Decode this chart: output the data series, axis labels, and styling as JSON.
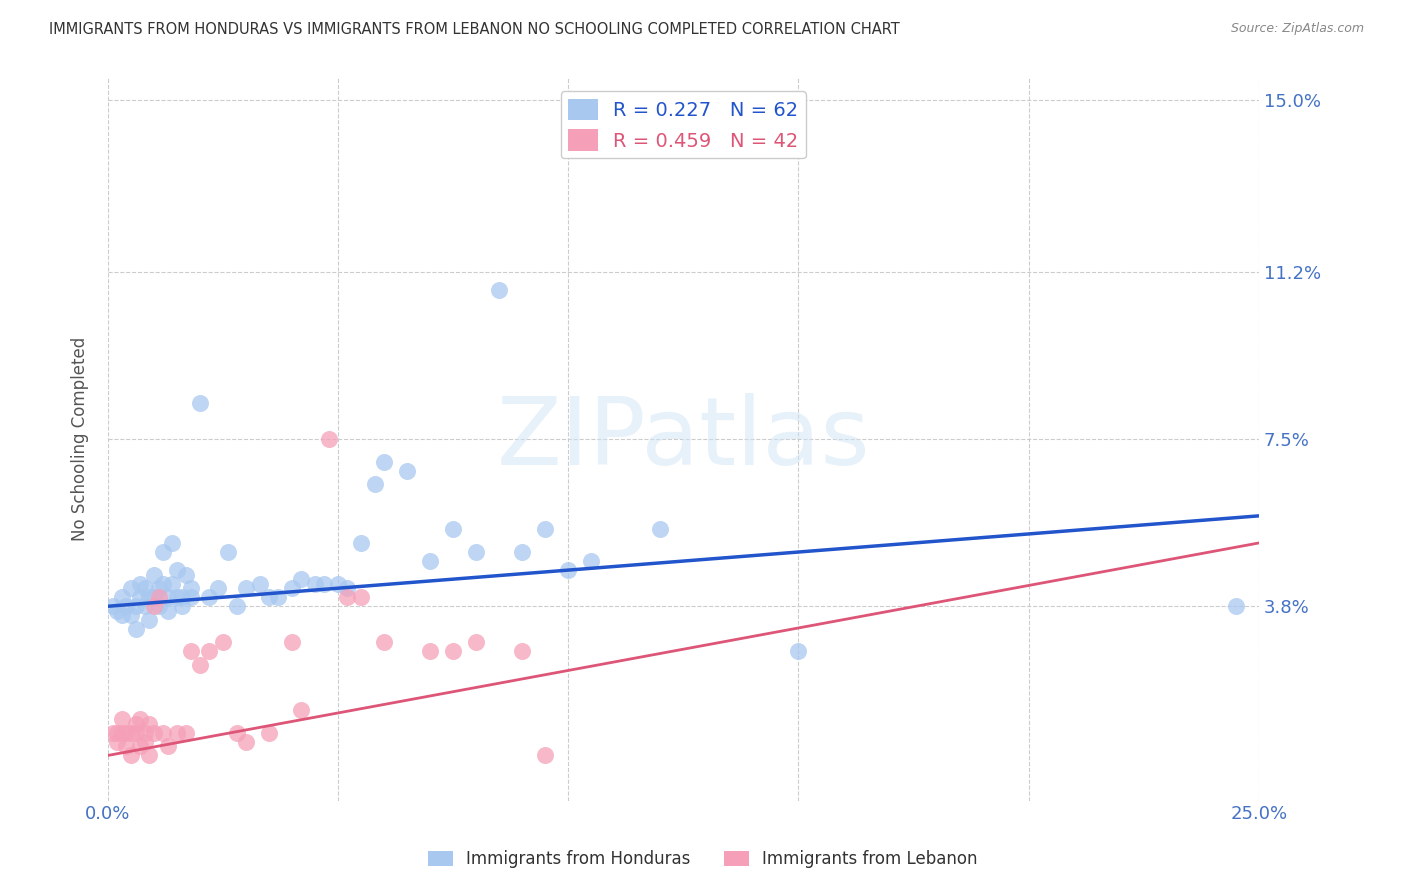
{
  "title": "IMMIGRANTS FROM HONDURAS VS IMMIGRANTS FROM LEBANON NO SCHOOLING COMPLETED CORRELATION CHART",
  "source": "Source: ZipAtlas.com",
  "ylabel": "No Schooling Completed",
  "xlim": [
    0.0,
    0.25
  ],
  "ylim": [
    -0.005,
    0.155
  ],
  "ytick_labels_right": [
    "15.0%",
    "11.2%",
    "7.5%",
    "3.8%"
  ],
  "ytick_vals_right": [
    0.15,
    0.112,
    0.075,
    0.038
  ],
  "blue_color": "#a8c8f0",
  "pink_color": "#f5a0b8",
  "blue_line_color": "#2255cc",
  "pink_line_color": "#dd5577",
  "blue_R": 0.227,
  "blue_N": 62,
  "pink_R": 0.459,
  "pink_N": 42,
  "legend_label_blue": "Immigrants from Honduras",
  "legend_label_pink": "Immigrants from Lebanon",
  "watermark": "ZIPatlas",
  "background_color": "#ffffff",
  "grid_color": "#cccccc",
  "title_color": "#333333",
  "axis_label_color": "#4472c4",
  "blue_line_x": [
    0.0,
    0.25
  ],
  "blue_line_y": [
    0.038,
    0.058
  ],
  "pink_line_x": [
    0.0,
    0.25
  ],
  "pink_line_y": [
    0.005,
    0.052
  ],
  "blue_scatter": [
    [
      0.001,
      0.038
    ],
    [
      0.002,
      0.037
    ],
    [
      0.003,
      0.036
    ],
    [
      0.003,
      0.04
    ],
    [
      0.004,
      0.038
    ],
    [
      0.005,
      0.036
    ],
    [
      0.005,
      0.042
    ],
    [
      0.006,
      0.038
    ],
    [
      0.006,
      0.033
    ],
    [
      0.007,
      0.04
    ],
    [
      0.007,
      0.043
    ],
    [
      0.008,
      0.038
    ],
    [
      0.008,
      0.042
    ],
    [
      0.009,
      0.04
    ],
    [
      0.009,
      0.035
    ],
    [
      0.01,
      0.04
    ],
    [
      0.01,
      0.045
    ],
    [
      0.011,
      0.042
    ],
    [
      0.011,
      0.038
    ],
    [
      0.012,
      0.05
    ],
    [
      0.012,
      0.043
    ],
    [
      0.013,
      0.037
    ],
    [
      0.013,
      0.04
    ],
    [
      0.014,
      0.043
    ],
    [
      0.014,
      0.052
    ],
    [
      0.015,
      0.04
    ],
    [
      0.015,
      0.046
    ],
    [
      0.016,
      0.04
    ],
    [
      0.016,
      0.038
    ],
    [
      0.017,
      0.045
    ],
    [
      0.018,
      0.04
    ],
    [
      0.018,
      0.042
    ],
    [
      0.02,
      0.083
    ],
    [
      0.022,
      0.04
    ],
    [
      0.024,
      0.042
    ],
    [
      0.026,
      0.05
    ],
    [
      0.028,
      0.038
    ],
    [
      0.03,
      0.042
    ],
    [
      0.033,
      0.043
    ],
    [
      0.035,
      0.04
    ],
    [
      0.037,
      0.04
    ],
    [
      0.04,
      0.042
    ],
    [
      0.042,
      0.044
    ],
    [
      0.045,
      0.043
    ],
    [
      0.047,
      0.043
    ],
    [
      0.05,
      0.043
    ],
    [
      0.052,
      0.042
    ],
    [
      0.055,
      0.052
    ],
    [
      0.058,
      0.065
    ],
    [
      0.06,
      0.07
    ],
    [
      0.065,
      0.068
    ],
    [
      0.07,
      0.048
    ],
    [
      0.075,
      0.055
    ],
    [
      0.08,
      0.05
    ],
    [
      0.085,
      0.108
    ],
    [
      0.09,
      0.05
    ],
    [
      0.095,
      0.055
    ],
    [
      0.1,
      0.046
    ],
    [
      0.105,
      0.048
    ],
    [
      0.12,
      0.055
    ],
    [
      0.15,
      0.028
    ],
    [
      0.245,
      0.038
    ]
  ],
  "pink_scatter": [
    [
      0.001,
      0.01
    ],
    [
      0.002,
      0.01
    ],
    [
      0.002,
      0.008
    ],
    [
      0.003,
      0.01
    ],
    [
      0.003,
      0.013
    ],
    [
      0.004,
      0.01
    ],
    [
      0.004,
      0.007
    ],
    [
      0.005,
      0.01
    ],
    [
      0.005,
      0.005
    ],
    [
      0.006,
      0.01
    ],
    [
      0.006,
      0.012
    ],
    [
      0.007,
      0.013
    ],
    [
      0.007,
      0.007
    ],
    [
      0.008,
      0.01
    ],
    [
      0.008,
      0.008
    ],
    [
      0.009,
      0.005
    ],
    [
      0.009,
      0.012
    ],
    [
      0.01,
      0.01
    ],
    [
      0.01,
      0.038
    ],
    [
      0.011,
      0.04
    ],
    [
      0.012,
      0.01
    ],
    [
      0.013,
      0.007
    ],
    [
      0.015,
      0.01
    ],
    [
      0.017,
      0.01
    ],
    [
      0.018,
      0.028
    ],
    [
      0.02,
      0.025
    ],
    [
      0.022,
      0.028
    ],
    [
      0.025,
      0.03
    ],
    [
      0.028,
      0.01
    ],
    [
      0.03,
      0.008
    ],
    [
      0.035,
      0.01
    ],
    [
      0.04,
      0.03
    ],
    [
      0.042,
      0.015
    ],
    [
      0.048,
      0.075
    ],
    [
      0.052,
      0.04
    ],
    [
      0.055,
      0.04
    ],
    [
      0.06,
      0.03
    ],
    [
      0.07,
      0.028
    ],
    [
      0.075,
      0.028
    ],
    [
      0.08,
      0.03
    ],
    [
      0.09,
      0.028
    ],
    [
      0.095,
      0.005
    ]
  ]
}
